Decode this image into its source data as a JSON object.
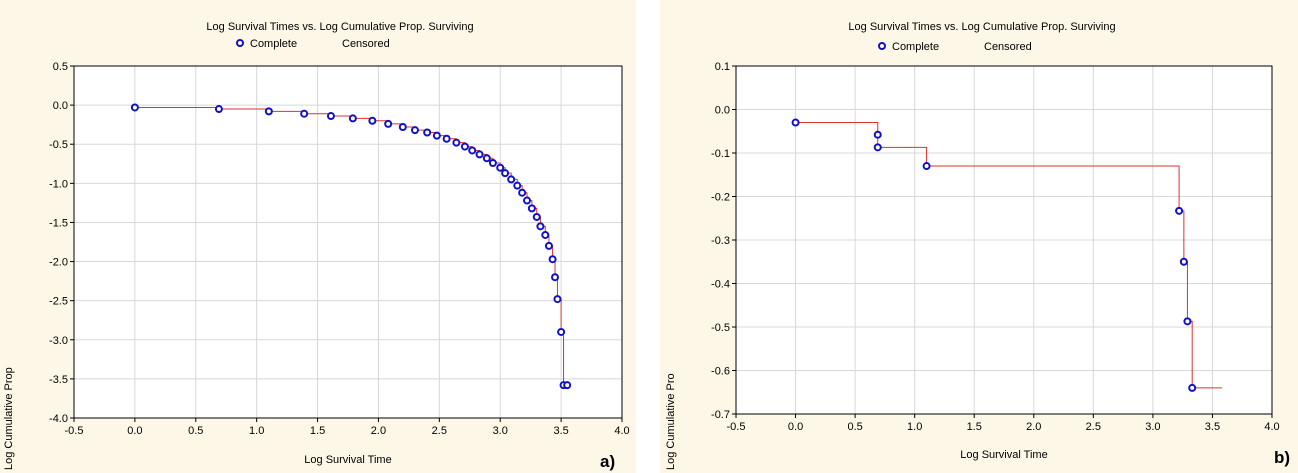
{
  "chart_data": [
    {
      "type": "scatter",
      "title": "Log Survival Times vs. Log Cumulative Prop. Surviving",
      "xlabel": "Log Survival Time",
      "ylabel": "Log Cumulative Prop",
      "xlim": [
        -0.5,
        4.0
      ],
      "ylim": [
        -4.0,
        0.5
      ],
      "xticks": [
        "-0.5",
        "0.0",
        "0.5",
        "1.0",
        "1.5",
        "2.0",
        "2.5",
        "3.0",
        "3.5",
        "4.0"
      ],
      "yticks": [
        "0.5",
        "0.0",
        "-0.5",
        "-1.0",
        "-1.5",
        "-2.0",
        "-2.5",
        "-3.0",
        "-3.5",
        "-4.0"
      ],
      "grid": true,
      "legend": [
        "Complete",
        "Censored"
      ],
      "legend_position": "top-center",
      "panel_label": "a)",
      "series": [
        {
          "name": "Complete",
          "color": "#1010c8",
          "x": [
            0.0,
            0.69,
            1.1,
            1.39,
            1.61,
            1.79,
            1.95,
            2.08,
            2.2,
            2.3,
            2.4,
            2.48,
            2.56,
            2.64,
            2.71,
            2.77,
            2.83,
            2.89,
            2.94,
            3.0,
            3.04,
            3.09,
            3.14,
            3.18,
            3.22,
            3.26,
            3.3,
            3.33,
            3.37,
            3.4,
            3.43,
            3.45,
            3.47,
            3.5,
            3.52,
            3.55
          ],
          "y": [
            -0.03,
            -0.05,
            -0.08,
            -0.11,
            -0.14,
            -0.17,
            -0.2,
            -0.24,
            -0.28,
            -0.32,
            -0.35,
            -0.39,
            -0.43,
            -0.48,
            -0.53,
            -0.58,
            -0.63,
            -0.68,
            -0.74,
            -0.8,
            -0.87,
            -0.95,
            -1.03,
            -1.12,
            -1.22,
            -1.32,
            -1.43,
            -1.55,
            -1.66,
            -1.8,
            -1.97,
            -2.2,
            -2.48,
            -2.9,
            -3.58,
            -3.58
          ]
        }
      ],
      "step_line": {
        "color": "#e03030",
        "x": [
          0.0,
          0.69,
          1.1,
          1.39,
          1.61,
          1.79,
          1.95,
          2.08,
          2.2,
          2.3,
          2.4,
          2.48,
          2.56,
          2.64,
          2.71,
          2.77,
          2.83,
          2.89,
          2.94,
          3.0,
          3.04,
          3.09,
          3.14,
          3.18,
          3.22,
          3.26,
          3.3,
          3.33,
          3.37,
          3.4,
          3.43,
          3.45,
          3.47,
          3.5,
          3.52,
          3.55
        ],
        "y": [
          -0.03,
          -0.05,
          -0.08,
          -0.11,
          -0.14,
          -0.17,
          -0.2,
          -0.24,
          -0.28,
          -0.32,
          -0.35,
          -0.39,
          -0.43,
          -0.48,
          -0.53,
          -0.58,
          -0.63,
          -0.68,
          -0.74,
          -0.8,
          -0.87,
          -0.95,
          -1.03,
          -1.12,
          -1.22,
          -1.32,
          -1.43,
          -1.55,
          -1.66,
          -1.8,
          -1.97,
          -2.2,
          -2.48,
          -2.9,
          -3.58,
          -3.58
        ]
      }
    },
    {
      "type": "scatter",
      "title": "Log Survival Times vs. Log Cumulative Prop. Surviving",
      "xlabel": "Log Survival Time",
      "ylabel": "Log Cumulative Pro",
      "xlim": [
        -0.5,
        4.0
      ],
      "ylim": [
        -0.7,
        0.1
      ],
      "xticks": [
        "-0.5",
        "0.0",
        "0.5",
        "1.0",
        "1.5",
        "2.0",
        "2.5",
        "3.0",
        "3.5",
        "4.0"
      ],
      "yticks": [
        "0.1",
        "0.0",
        "-0.1",
        "-0.2",
        "-0.3",
        "-0.4",
        "-0.5",
        "-0.6",
        "-0.7"
      ],
      "grid": true,
      "legend": [
        "Complete",
        "Censored"
      ],
      "legend_position": "top-center",
      "panel_label": "b)",
      "series": [
        {
          "name": "Complete",
          "color": "#1010c8",
          "x": [
            0.0,
            0.69,
            0.69,
            1.1,
            3.22,
            3.26,
            3.29,
            3.33
          ],
          "y": [
            -0.03,
            -0.058,
            -0.087,
            -0.13,
            -0.233,
            -0.35,
            -0.487,
            -0.64
          ]
        }
      ],
      "step_line": {
        "color": "#e03030",
        "x": [
          0.0,
          0.69,
          0.69,
          1.1,
          3.22,
          3.26,
          3.29,
          3.33,
          3.58
        ],
        "y": [
          -0.03,
          -0.058,
          -0.087,
          -0.13,
          -0.233,
          -0.35,
          -0.487,
          -0.64,
          -0.64
        ]
      }
    }
  ]
}
